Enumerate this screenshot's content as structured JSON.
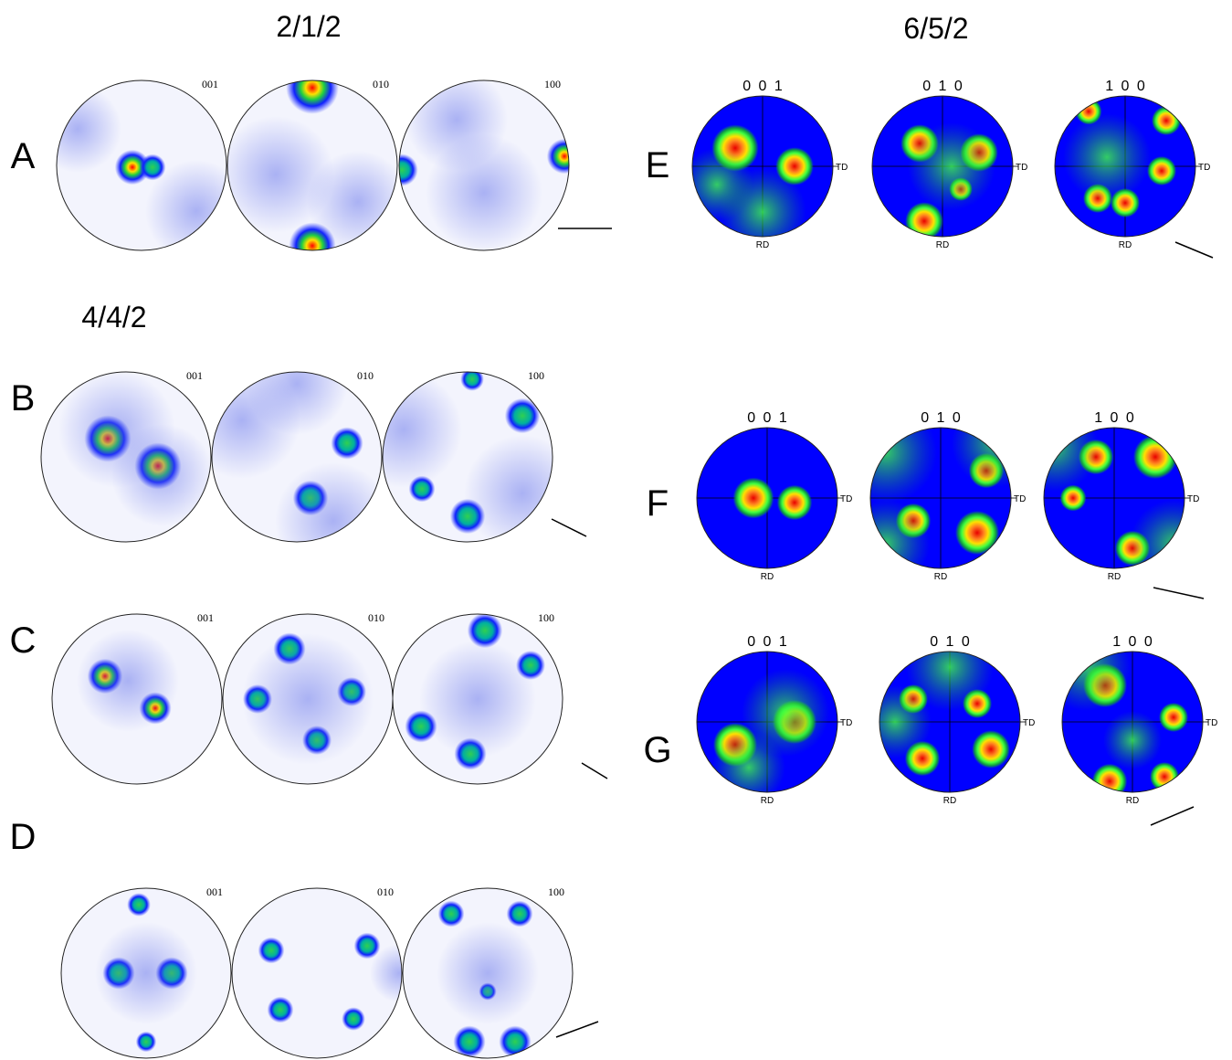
{
  "titles": [
    "2/1/2",
    "4/4/2",
    "6/5/2"
  ],
  "left_rows": [
    {
      "label": "A",
      "figures": [
        "001",
        "010",
        "100"
      ]
    },
    {
      "label": "B",
      "figures": [
        "001",
        "010",
        "100"
      ]
    },
    {
      "label": "C",
      "figures": [
        "001",
        "010",
        "100"
      ]
    },
    {
      "label": "D",
      "figures": [
        "001",
        "010",
        "100"
      ]
    }
  ],
  "right_rows": [
    {
      "label": "E",
      "figures": [
        {
          "pole": "0 0 1",
          "td": "TD",
          "rd": "RD"
        },
        {
          "pole": "0 1 0",
          "td": "TD",
          "rd": "RD"
        },
        {
          "pole": "1 0 0",
          "td": "TD",
          "rd": "RD"
        }
      ]
    },
    {
      "label": "F",
      "figures": [
        {
          "pole": "0 0 1",
          "td": "TD",
          "rd": "RD"
        },
        {
          "pole": "0 1 0",
          "td": "TD",
          "rd": "RD"
        },
        {
          "pole": "1 0 0",
          "td": "TD",
          "rd": "RD"
        }
      ]
    },
    {
      "label": "G",
      "figures": [
        {
          "pole": "0 0 1",
          "td": "TD",
          "rd": "RD"
        },
        {
          "pole": "0 1 0",
          "td": "TD",
          "rd": "RD"
        },
        {
          "pole": "1 0 0",
          "td": "TD",
          "rd": "RD"
        }
      ]
    }
  ]
}
